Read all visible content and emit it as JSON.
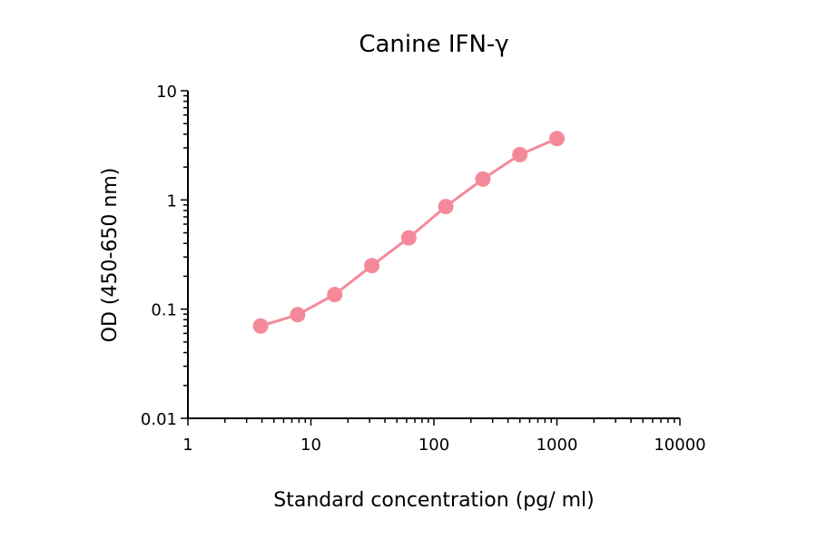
{
  "chart_data": {
    "type": "line",
    "title": "Canine IFN-γ",
    "xlabel": "Standard concentration (pg/ ml)",
    "ylabel": "OD (450-650 nm)",
    "x_scale": "log",
    "y_scale": "log",
    "xlim": [
      1,
      10000
    ],
    "ylim": [
      0.01,
      10
    ],
    "x_ticks": [
      "1",
      "10",
      "100",
      "1000",
      "10000"
    ],
    "y_ticks": [
      "0.01",
      "0.1",
      "1",
      "10"
    ],
    "grid": false,
    "series": [
      {
        "color": "#f4899a",
        "x": [
          3.9,
          7.8,
          15.6,
          31.25,
          62.5,
          125,
          250,
          500,
          1000
        ],
        "y": [
          0.07,
          0.089,
          0.136,
          0.25,
          0.45,
          0.87,
          1.55,
          2.6,
          3.65
        ]
      }
    ]
  }
}
